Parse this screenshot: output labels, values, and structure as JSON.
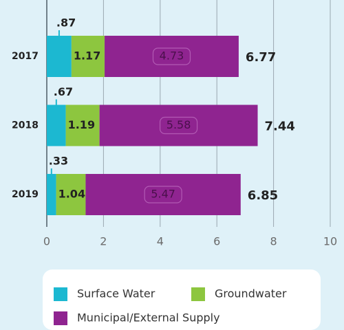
{
  "chart_data": {
    "type": "stacked_bar_horizontal",
    "categories": [
      "2017",
      "2018",
      "2019"
    ],
    "series": [
      {
        "name": "Surface Water",
        "color": "#1cb8d1",
        "values": [
          0.87,
          0.67,
          0.33
        ],
        "value_labels": [
          ".87",
          ".67",
          ".33"
        ]
      },
      {
        "name": "Groundwater",
        "color": "#8dc63f",
        "values": [
          1.17,
          1.19,
          1.04
        ]
      },
      {
        "name": "Municipal/External Supply",
        "color": "#8f2490",
        "values": [
          4.73,
          5.58,
          5.47
        ]
      }
    ],
    "totals": [
      6.77,
      7.44,
      6.85
    ],
    "xlim": [
      0,
      10
    ],
    "xticks": [
      0,
      2,
      4,
      6,
      8,
      10
    ],
    "grid": true
  }
}
